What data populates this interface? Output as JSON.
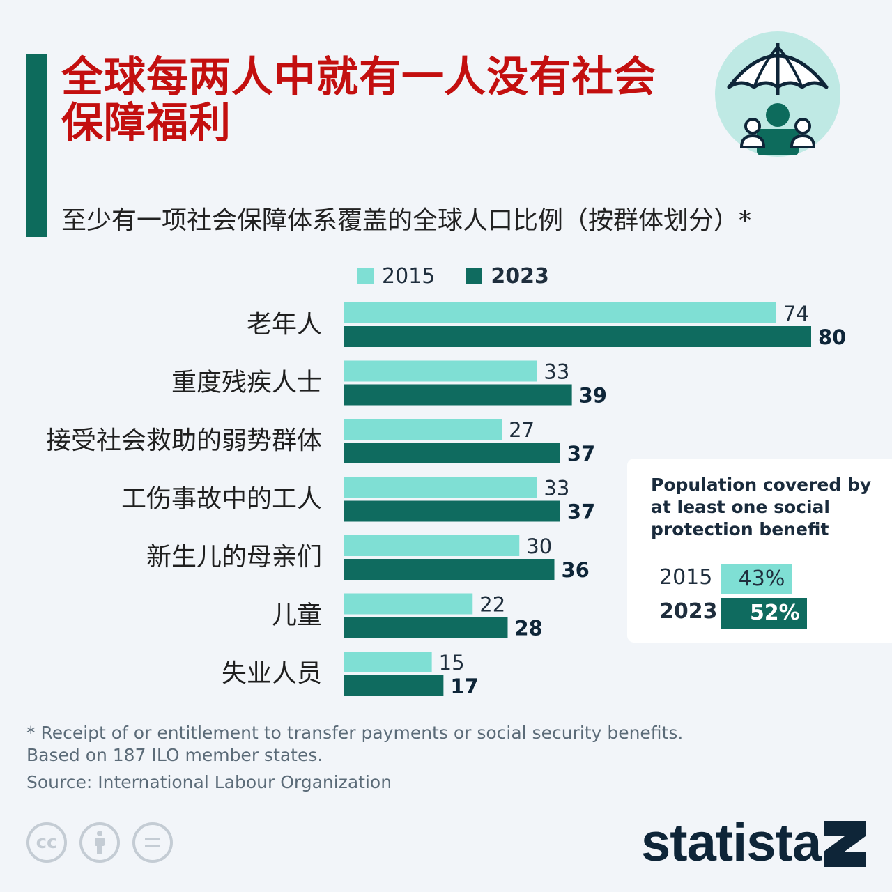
{
  "header": {
    "title": "全球每两人中就有一人没有社会保障福利",
    "subtitle": "至少有一项社会保障体系覆盖的全球人口比例（按群体划分）*"
  },
  "colors": {
    "accent": "#0d6b5c",
    "light": "#7fdfd4",
    "dark": "#0f6b5f",
    "title": "#c30f0f"
  },
  "chart_data": {
    "type": "bar",
    "orientation": "horizontal",
    "categories": [
      "老年人",
      "重度残疾人士",
      "接受社会救助的弱势群体",
      "工伤事故中的工人",
      "新生儿的母亲们",
      "儿童",
      "失业人员"
    ],
    "series": [
      {
        "name": "2015",
        "values": [
          74,
          33,
          27,
          33,
          30,
          22,
          15
        ],
        "color": "#7fdfd4"
      },
      {
        "name": "2023",
        "values": [
          80,
          39,
          37,
          37,
          36,
          28,
          17
        ],
        "color": "#0f6b5f"
      }
    ],
    "xlim": [
      0,
      80
    ],
    "legend": "top",
    "grid": false
  },
  "summary": {
    "title": "Population covered by at least one social protection benefit",
    "rows": [
      {
        "year": "2015",
        "value": 43,
        "label": "43%"
      },
      {
        "year": "2023",
        "value": 52,
        "label": "52%"
      }
    ]
  },
  "footer": {
    "note1": "* Receipt of or entitlement to transfer payments or social security benefits.",
    "note2": "Based on 187 ILO member states.",
    "source": "Source: International Labour Organization",
    "brand": "statista",
    "cc_icons": [
      "cc-icon",
      "attribution-icon",
      "no-derivatives-icon"
    ]
  }
}
